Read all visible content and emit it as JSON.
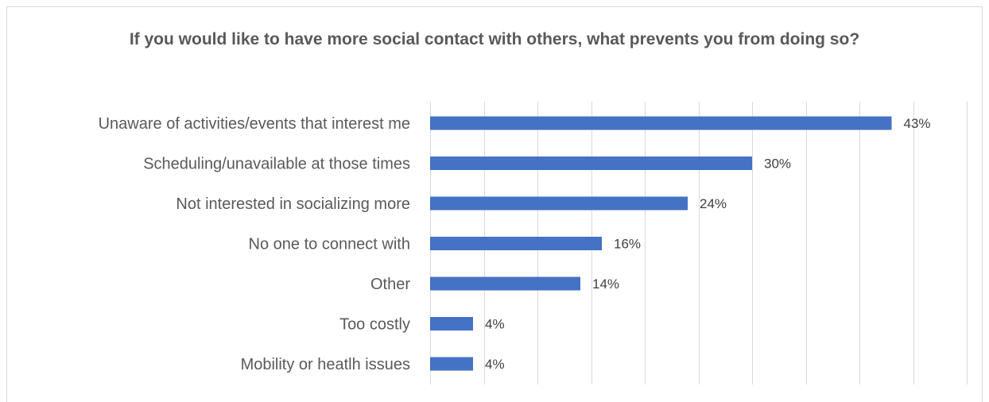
{
  "chart_data": {
    "type": "bar",
    "orientation": "horizontal",
    "title": "If you would like to have more social contact with others, what prevents you from doing so?",
    "categories": [
      "Unaware of activities/events that interest me",
      "Scheduling/unavailable at those times",
      "Not interested in socializing more",
      "No one to connect with",
      "Other",
      "Too costly",
      "Mobility or heatlh issues"
    ],
    "values": [
      43,
      30,
      24,
      16,
      14,
      4,
      4
    ],
    "value_labels": [
      "43%",
      "30%",
      "24%",
      "16%",
      "14%",
      "4%",
      "4%"
    ],
    "xlim": [
      0,
      50
    ],
    "grid": true,
    "bar_color": "#4472C4",
    "gridline_color": "#d9d9d9",
    "text_color": "#595959"
  }
}
